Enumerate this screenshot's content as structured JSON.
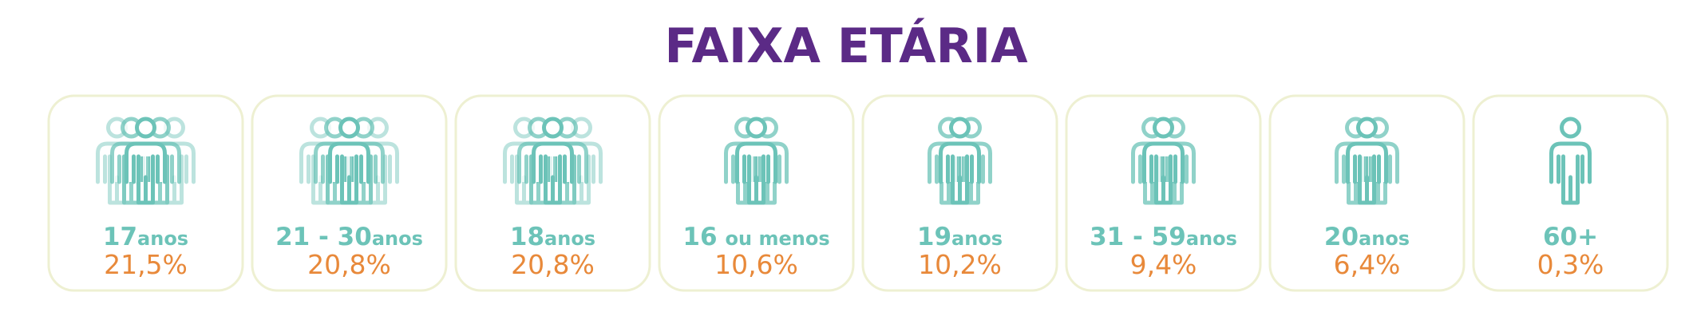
{
  "title": "FAIXA ETÁRIA",
  "cards": [
    {
      "number": "17",
      "unit": "anos",
      "percent": "21,5%"
    },
    {
      "number": "21 - 30",
      "unit": "anos",
      "percent": "20,8%"
    },
    {
      "number": "18",
      "unit": "anos",
      "percent": "20,8%"
    },
    {
      "number": "16",
      "unit": "ou menos",
      "percent": "10,6%"
    },
    {
      "number": "19",
      "unit": "anos",
      "percent": "10,2%"
    },
    {
      "number": "31 - 59",
      "unit": "anos",
      "percent": "9,4%"
    },
    {
      "number": "20",
      "unit": "anos",
      "percent": "6,4%"
    },
    {
      "number": "60+",
      "percent": "0,3%"
    }
  ]
}
